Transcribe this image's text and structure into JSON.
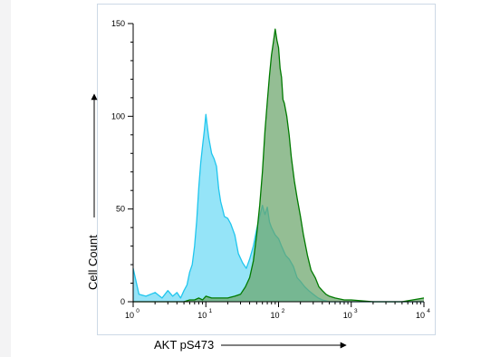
{
  "chart_data": {
    "type": "area",
    "xlabel": "AKT pS473",
    "ylabel": "Cell Count",
    "x_scale": "log",
    "xlim": [
      1,
      10000
    ],
    "ylim": [
      0,
      150
    ],
    "x_ticks": [
      {
        "value": 1,
        "base": "10",
        "exp": "0"
      },
      {
        "value": 10,
        "base": "10",
        "exp": "1"
      },
      {
        "value": 100,
        "base": "10",
        "exp": "2"
      },
      {
        "value": 1000,
        "base": "10",
        "exp": "3"
      },
      {
        "value": 10000,
        "base": "10",
        "exp": "4"
      }
    ],
    "y_ticks": [
      {
        "value": 0,
        "label": "0"
      },
      {
        "value": 50,
        "label": "50"
      },
      {
        "value": 100,
        "label": "100"
      },
      {
        "value": 150,
        "label": "150"
      }
    ],
    "grid": false,
    "legend": "none",
    "series": [
      {
        "color_fill": "#8fe3f8",
        "color_line": "#20c6ee",
        "x": [
          1,
          1.2,
          1.5,
          2,
          2.5,
          3,
          3.5,
          4,
          4.5,
          5,
          5.5,
          6,
          6.5,
          7,
          7.5,
          8,
          8.5,
          9,
          9.5,
          10,
          10.5,
          11,
          12,
          13,
          14,
          15,
          16,
          17,
          18,
          20,
          22,
          25,
          28,
          32,
          36,
          40,
          45,
          50,
          55,
          60,
          65,
          70,
          75,
          80,
          90,
          100,
          110,
          125,
          140,
          160,
          180,
          200,
          230,
          260,
          300,
          350,
          400,
          500,
          700,
          1000,
          10000
        ],
        "y": [
          18,
          4,
          3,
          5,
          2,
          6,
          3,
          5,
          2,
          6,
          9,
          16,
          20,
          30,
          44,
          62,
          75,
          84,
          92,
          101,
          94,
          88,
          80,
          77,
          73,
          61,
          54,
          50,
          46,
          45,
          42,
          36,
          26,
          21,
          18,
          23,
          30,
          39,
          46,
          52,
          47,
          51,
          43,
          40,
          36,
          34,
          30,
          25,
          23,
          19,
          13,
          11,
          8,
          6,
          4,
          2,
          1,
          0,
          0,
          0,
          0
        ]
      },
      {
        "color_fill": "#6ba56b",
        "color_line": "#007a00",
        "x": [
          1,
          5,
          6,
          7,
          8,
          9,
          10,
          12,
          15,
          20,
          25,
          30,
          35,
          40,
          45,
          50,
          55,
          60,
          65,
          70,
          75,
          80,
          85,
          90,
          95,
          100,
          105,
          110,
          115,
          120,
          130,
          140,
          150,
          165,
          180,
          200,
          220,
          250,
          280,
          320,
          360,
          400,
          450,
          500,
          600,
          800,
          1000,
          2000,
          5000,
          10000
        ],
        "y": [
          0,
          0,
          1,
          1,
          2,
          1,
          3,
          2,
          2,
          2,
          3,
          4,
          8,
          13,
          22,
          36,
          52,
          70,
          92,
          108,
          122,
          133,
          140,
          147,
          141,
          137,
          126,
          121,
          109,
          107,
          100,
          90,
          78,
          65,
          56,
          46,
          36,
          25,
          17,
          13,
          8,
          6,
          4,
          3,
          2,
          1,
          1,
          0,
          0,
          2
        ]
      }
    ]
  }
}
